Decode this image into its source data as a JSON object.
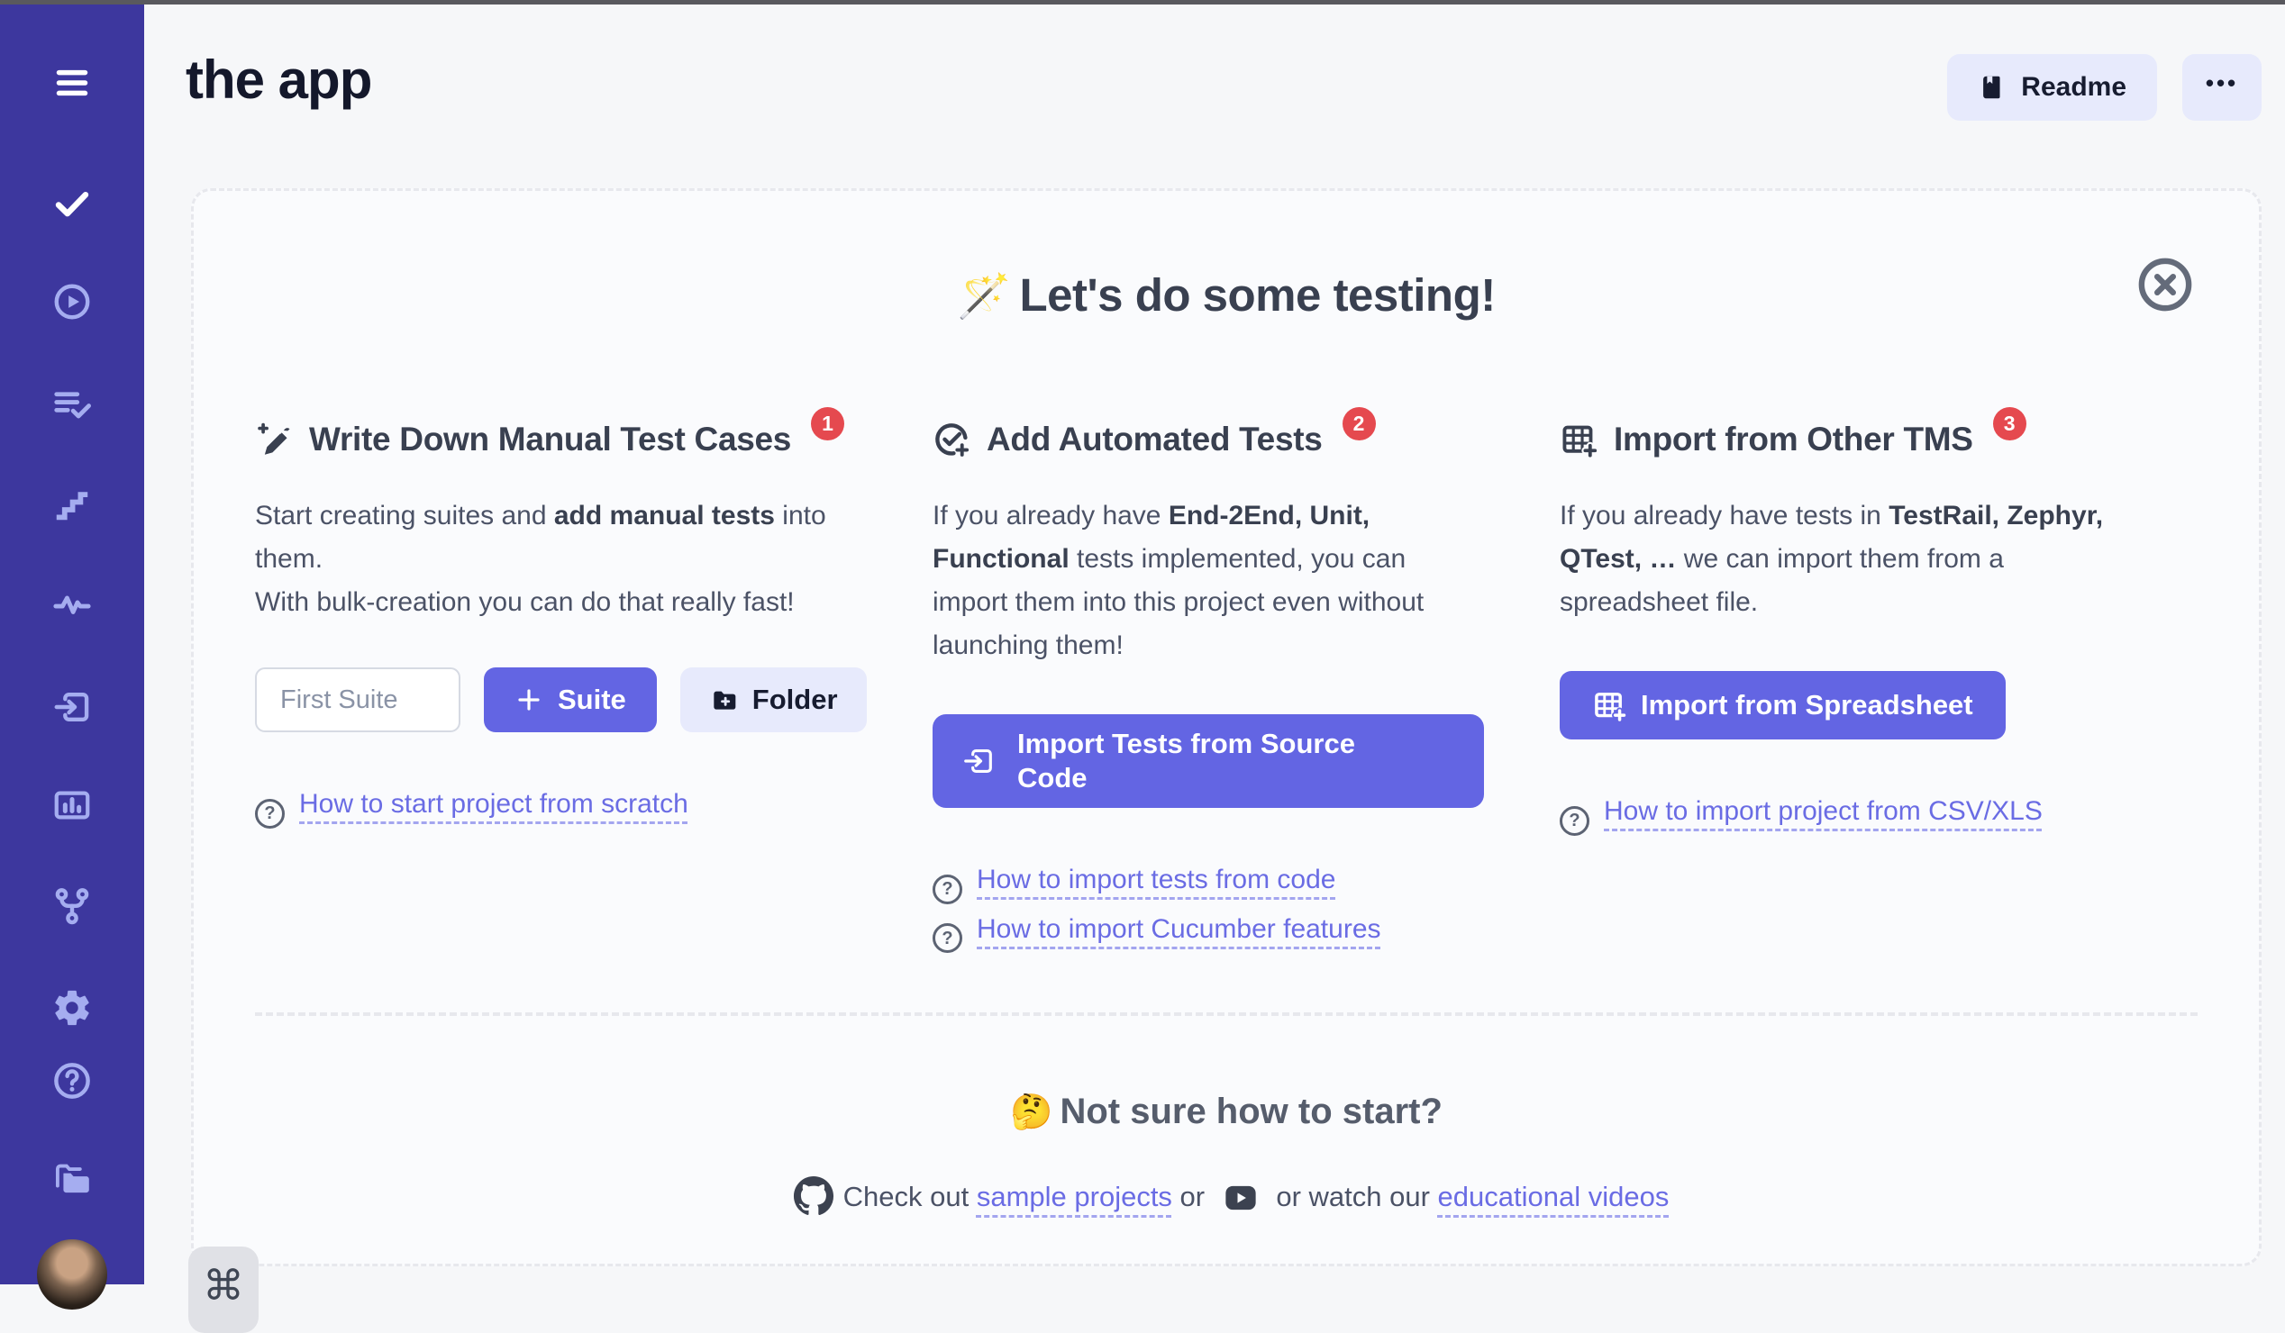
{
  "colors": {
    "sidebar": "#3d379e",
    "accent": "#6365e3",
    "badge_red": "#e5494f",
    "link_purple": "#6a6ce4",
    "light_button": "#e7eafc",
    "page_bg": "#f6f7f9"
  },
  "app_title": "the app",
  "header": {
    "readme": "Readme",
    "more": "•••"
  },
  "sidebar_icons": [
    "menu",
    "checklist",
    "play-circle",
    "list-check",
    "stairs",
    "activity",
    "import",
    "report",
    "git-fork",
    "settings",
    "help-circle",
    "folders",
    "avatar"
  ],
  "card": {
    "title_emoji": "🪄",
    "title": "Let's do some testing!",
    "close_icon": "circle-x",
    "columns": [
      {
        "title": "Write Down Manual Test Cases",
        "badge": "1",
        "icon": "magic-pen",
        "body": [
          {
            "text": "Start creating suites and "
          },
          {
            "text": "add manual tests",
            "bold": true
          },
          {
            "text": " into them."
          },
          {
            "break": true
          },
          {
            "text": "With bulk-creation you can do that really fast!"
          }
        ],
        "input_placeholder": "First Suite",
        "suite_button": "Suite",
        "folder_button": "Folder",
        "links": [
          {
            "text": "How to start project from scratch"
          }
        ]
      },
      {
        "title": "Add Automated Tests",
        "badge": "2",
        "icon": "circle-check-plus",
        "body": [
          {
            "text": "If you already have "
          },
          {
            "text": "End-2End, Unit, Functional",
            "bold": true
          },
          {
            "text": " tests implemented, you can import them into this project even without launching them!"
          }
        ],
        "button": "Import Tests from Source Code",
        "links": [
          {
            "text": "How to import tests from code"
          },
          {
            "text": "How to import Cucumber features"
          }
        ]
      },
      {
        "title": "Import from Other TMS",
        "badge": "3",
        "icon": "table-plus",
        "body": [
          {
            "text": "If you already have tests in "
          },
          {
            "text": "TestRail, Zephyr, QTest, …",
            "bold": true
          },
          {
            "text": " we can import them from a spreadsheet file."
          }
        ],
        "button": "Import from Spreadsheet",
        "links": [
          {
            "text": "How to import project from CSV/XLS"
          }
        ]
      }
    ],
    "footer": {
      "title_emoji": "🤔",
      "title": "Not sure how to start?",
      "check_out": "Check out ",
      "sample_projects": "sample projects",
      "or": " or ",
      "watch_our": " or watch our ",
      "educational_videos": "educational videos"
    }
  },
  "command_key": "⌘"
}
